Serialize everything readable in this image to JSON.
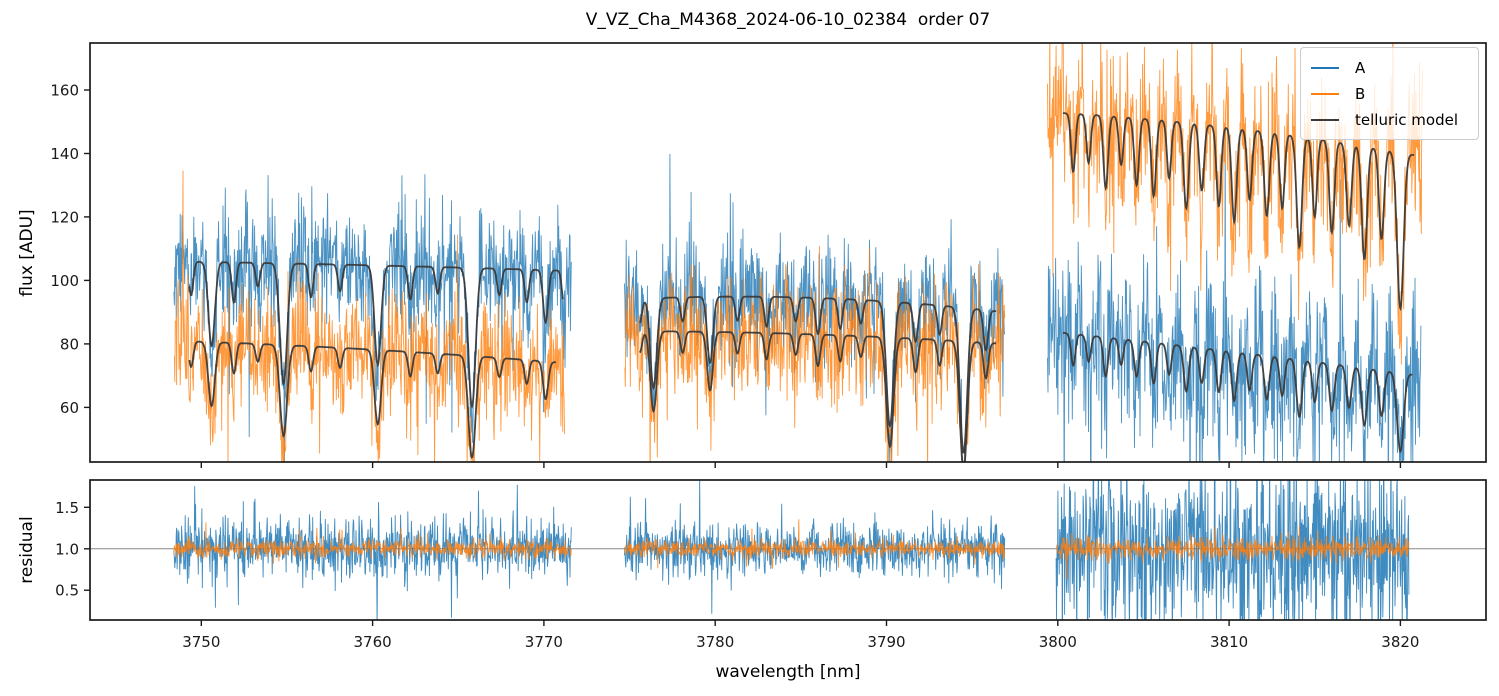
{
  "title": "V_VZ_Cha_M4368_2024-06-10_02384  order 07",
  "legend": {
    "entries": [
      {
        "label": "A",
        "color": "#1f77b4"
      },
      {
        "label": "B",
        "color": "#ff7f0e"
      },
      {
        "label": "telluric model",
        "color": "#3a3a3a"
      }
    ]
  },
  "chart_data": {
    "type": "line",
    "xlabel": "wavelength [nm]",
    "xlim": [
      3743.5,
      3825.0
    ],
    "xticks": [
      "3750",
      "3760",
      "3770",
      "3780",
      "3790",
      "3800",
      "3810",
      "3820"
    ],
    "panels": [
      {
        "name": "flux",
        "ylabel": "flux [ADU]",
        "ylim": [
          42.8,
          174.8
        ],
        "yticks": [
          "60",
          "80",
          "100",
          "120",
          "140",
          "160"
        ]
      },
      {
        "name": "residual",
        "ylabel": "residual",
        "ylim": [
          0.14,
          1.83
        ],
        "yticks": [
          "0.5",
          "1.0",
          "1.5"
        ],
        "axhline": 1.0,
        "axhline_color": "#888888"
      }
    ],
    "series": [
      {
        "name": "A",
        "panel": "flux",
        "color": "#1f77b4",
        "segments": [
          {
            "x0": 3748.4,
            "x1": 3771.6,
            "c0": 106,
            "cmid": 105,
            "c1": 103,
            "sigma": 9
          },
          {
            "x0": 3774.7,
            "x1": 3796.9,
            "c0": 94,
            "cmid": 97,
            "c1": 90,
            "sigma": 9
          },
          {
            "x0": 3799.4,
            "x1": 3821.2,
            "c0": 84,
            "cmid": 78,
            "c1": 70,
            "sigma": 13
          }
        ]
      },
      {
        "name": "B",
        "panel": "flux",
        "color": "#ff7f0e",
        "segments": [
          {
            "x0": 3748.4,
            "x1": 3771.2,
            "c0": 81,
            "cmid": 79,
            "c1": 74,
            "sigma": 9.5
          },
          {
            "x0": 3774.7,
            "x1": 3796.9,
            "c0": 84,
            "cmid": 84,
            "c1": 80,
            "sigma": 9.5
          },
          {
            "x0": 3799.4,
            "x1": 3821.3,
            "c0": 153,
            "cmid": 150,
            "c1": 139,
            "sigma": 12
          }
        ]
      },
      {
        "name": "telluric model",
        "panel": "flux",
        "color": "#3a3a3a",
        "follows": [
          "A",
          "B"
        ]
      },
      {
        "name": "A residual",
        "panel": "residual",
        "color": "#1f77b4",
        "mean": 1.0,
        "segments": [
          {
            "x0": 3748.4,
            "x1": 3771.6,
            "sigma": 0.18
          },
          {
            "x0": 3774.7,
            "x1": 3796.9,
            "sigma": 0.16
          },
          {
            "x0": 3799.9,
            "x1": 3820.5,
            "sigma": 0.5
          }
        ]
      },
      {
        "name": "B residual",
        "panel": "residual",
        "color": "#ff7f0e",
        "mean": 1.0,
        "segments": [
          {
            "x0": 3748.4,
            "x1": 3771.6,
            "sigma": 0.055
          },
          {
            "x0": 3774.7,
            "x1": 3796.9,
            "sigma": 0.05
          },
          {
            "x0": 3799.9,
            "x1": 3820.5,
            "sigma": 0.07
          }
        ]
      }
    ],
    "telluric_lines": [
      [
        3749.4,
        0.1,
        0.12
      ],
      [
        3750.6,
        0.25,
        0.18
      ],
      [
        3751.9,
        0.12,
        0.12
      ],
      [
        3753.3,
        0.07,
        0.12
      ],
      [
        3754.8,
        0.36,
        0.2
      ],
      [
        3756.4,
        0.1,
        0.12
      ],
      [
        3758.1,
        0.08,
        0.12
      ],
      [
        3760.3,
        0.3,
        0.18
      ],
      [
        3762.2,
        0.1,
        0.12
      ],
      [
        3763.8,
        0.08,
        0.12
      ],
      [
        3765.8,
        0.42,
        0.2
      ],
      [
        3767.4,
        0.08,
        0.12
      ],
      [
        3769.0,
        0.1,
        0.12
      ],
      [
        3770.1,
        0.16,
        0.14
      ],
      [
        3771.2,
        0.12,
        0.12
      ],
      [
        3775.6,
        0.08,
        0.12
      ],
      [
        3776.4,
        0.3,
        0.18
      ],
      [
        3778.1,
        0.08,
        0.12
      ],
      [
        3779.7,
        0.22,
        0.16
      ],
      [
        3781.3,
        0.08,
        0.12
      ],
      [
        3783.0,
        0.1,
        0.12
      ],
      [
        3784.7,
        0.08,
        0.12
      ],
      [
        3786.0,
        0.12,
        0.13
      ],
      [
        3787.3,
        0.1,
        0.12
      ],
      [
        3788.5,
        0.08,
        0.12
      ],
      [
        3790.2,
        0.42,
        0.2
      ],
      [
        3791.7,
        0.13,
        0.13
      ],
      [
        3793.1,
        0.1,
        0.12
      ],
      [
        3794.5,
        0.5,
        0.2
      ],
      [
        3795.8,
        0.14,
        0.13
      ],
      [
        3800.9,
        0.12,
        0.12
      ],
      [
        3801.8,
        0.1,
        0.12
      ],
      [
        3802.8,
        0.15,
        0.13
      ],
      [
        3803.7,
        0.1,
        0.12
      ],
      [
        3804.6,
        0.14,
        0.13
      ],
      [
        3805.6,
        0.16,
        0.13
      ],
      [
        3806.5,
        0.12,
        0.12
      ],
      [
        3807.5,
        0.18,
        0.14
      ],
      [
        3808.4,
        0.14,
        0.13
      ],
      [
        3809.4,
        0.17,
        0.13
      ],
      [
        3810.3,
        0.2,
        0.14
      ],
      [
        3811.2,
        0.15,
        0.13
      ],
      [
        3812.2,
        0.18,
        0.14
      ],
      [
        3813.1,
        0.16,
        0.13
      ],
      [
        3814.1,
        0.24,
        0.15
      ],
      [
        3815.0,
        0.17,
        0.13
      ],
      [
        3816.0,
        0.2,
        0.14
      ],
      [
        3817.0,
        0.18,
        0.14
      ],
      [
        3817.9,
        0.25,
        0.15
      ],
      [
        3818.9,
        0.2,
        0.14
      ],
      [
        3820.0,
        0.35,
        0.18
      ]
    ]
  }
}
